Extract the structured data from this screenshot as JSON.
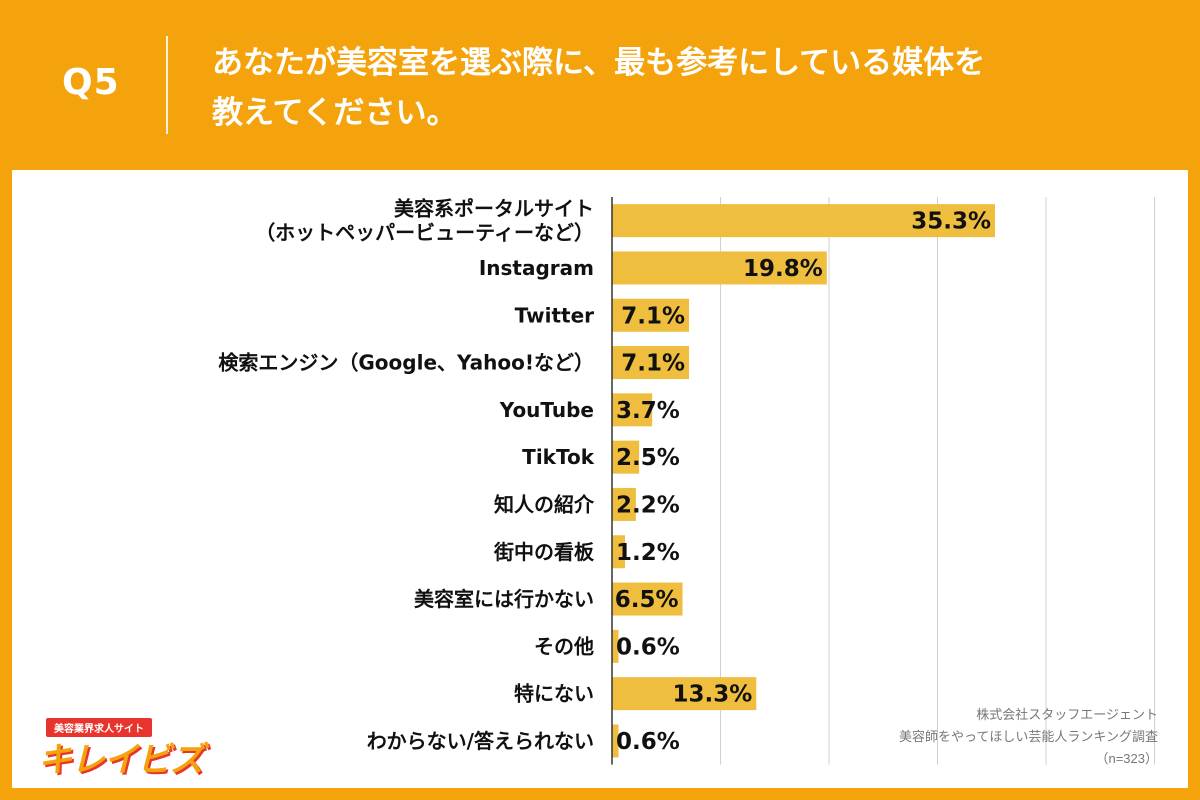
{
  "header": {
    "q_label": "Q5",
    "question_line1": "あなたが美容室を選ぶ際に、最も参考にしている媒体を",
    "question_line2": "教えてください。"
  },
  "source": {
    "line1": "株式会社スタッフエージェント",
    "line2": "美容師をやってほしい芸能人ランキング調査",
    "line3": "（n=323）"
  },
  "logo": {
    "tag": "美容業界求人サイト",
    "name": "キレイビズ"
  },
  "colors": {
    "background": "#f5a30c",
    "bar": "#efbe3f",
    "panel": "#ffffff"
  },
  "chart_data": {
    "type": "bar",
    "orientation": "horizontal",
    "categories": [
      [
        "美容系ポータルサイト",
        "（ホットペッパービューティーなど）"
      ],
      [
        "Instagram"
      ],
      [
        "Twitter"
      ],
      [
        "検索エンジン（Google、Yahoo!など）"
      ],
      [
        "YouTube"
      ],
      [
        "TikTok"
      ],
      [
        "知人の紹介"
      ],
      [
        "街中の看板"
      ],
      [
        "美容室には行かない"
      ],
      [
        "その他"
      ],
      [
        "特にない"
      ],
      [
        "わからない/答えられない"
      ]
    ],
    "values": [
      35.3,
      19.8,
      7.1,
      7.1,
      3.7,
      2.5,
      2.2,
      1.2,
      6.5,
      0.6,
      13.3,
      0.6
    ],
    "value_labels": [
      "35.3%",
      "19.8%",
      "7.1%",
      "7.1%",
      "3.7%",
      "2.5%",
      "2.2%",
      "1.2%",
      "6.5%",
      "0.6%",
      "13.3%",
      "0.6%"
    ],
    "xlim": [
      0,
      50
    ],
    "grid": true,
    "legend": "none"
  }
}
